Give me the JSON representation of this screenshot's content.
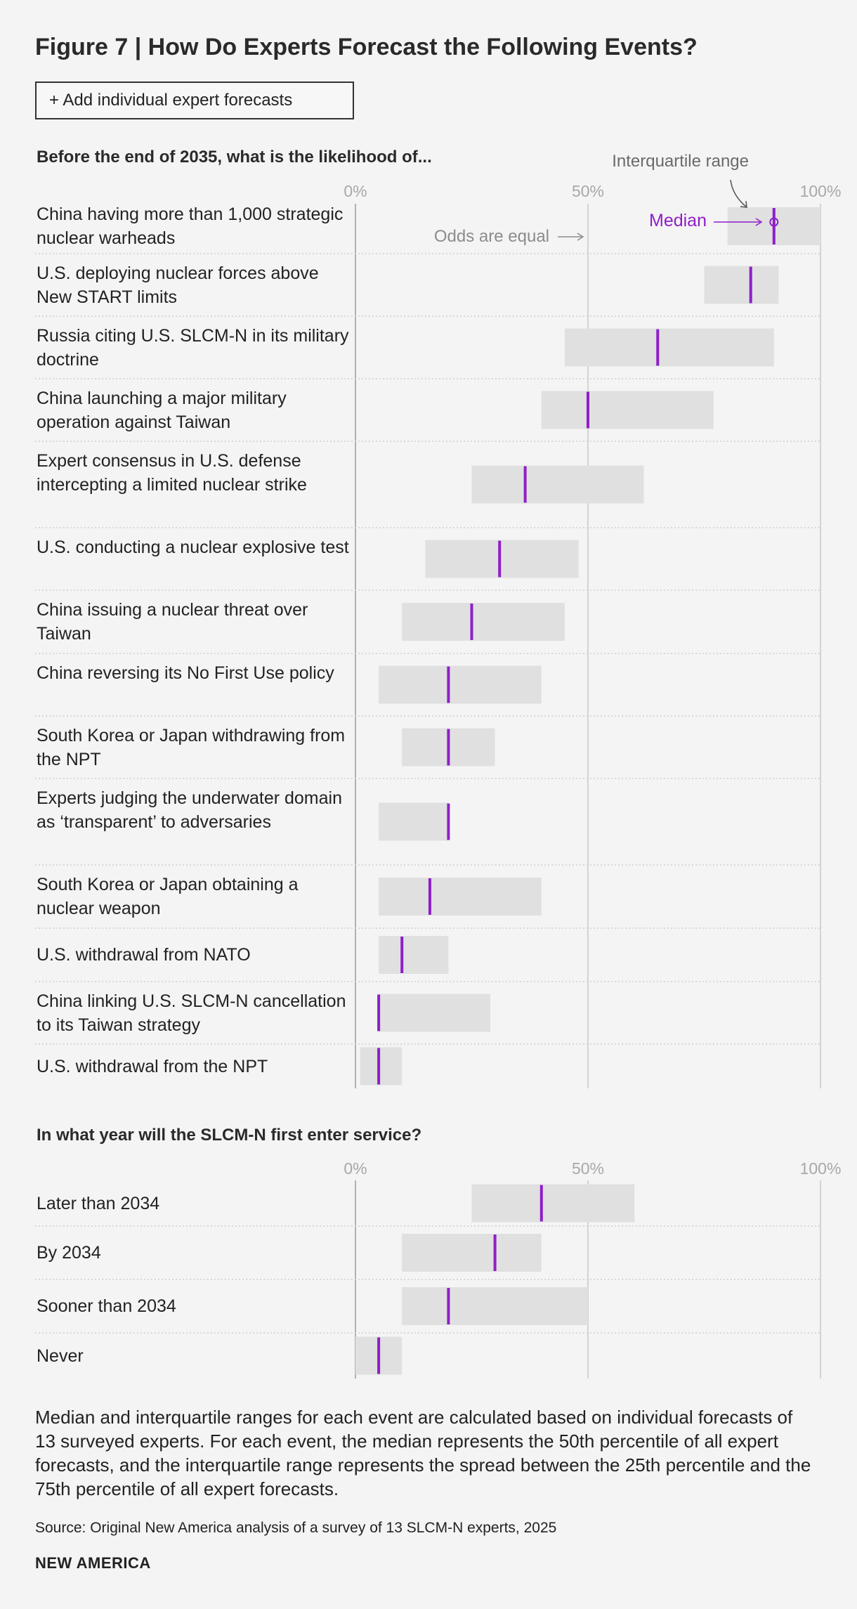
{
  "title": "Figure 7 | How Do Experts Forecast the Following Events?",
  "add_button_label": "+ Add individual expert forecasts",
  "colors": {
    "median": "#8e1fc7",
    "iqr": "#e0e0e0",
    "axis": "#a0a0a0"
  },
  "chart_data": [
    {
      "type": "range",
      "question": "Before the end of 2035, what is the likelihood of...",
      "ticks": [
        "0%",
        "50%",
        "100%"
      ],
      "xlim": [
        0,
        100
      ],
      "annotations": {
        "interquartile_label": "Interquartile range",
        "median_label": "Median",
        "odds_label": "Odds are equal"
      },
      "rows": [
        {
          "label": "China having more than 1,000 strategic nuclear warheads",
          "q1": 80,
          "median": 90,
          "q3": 100
        },
        {
          "label": "U.S. deploying nuclear forces above New START limits",
          "q1": 75,
          "median": 85,
          "q3": 91
        },
        {
          "label": "Russia citing U.S. SLCM-N in its military doctrine",
          "q1": 45,
          "median": 65,
          "q3": 90
        },
        {
          "label": "China launching a major military operation against Taiwan",
          "q1": 40,
          "median": 50,
          "q3": 77
        },
        {
          "label": "Expert consensus in U.S. defense intercepting a limited nuclear strike",
          "q1": 25,
          "median": 36.5,
          "q3": 62
        },
        {
          "label": "U.S. conducting a nuclear explosive test",
          "q1": 15,
          "median": 31,
          "q3": 48
        },
        {
          "label": "China issuing a nuclear threat over Taiwan",
          "q1": 10,
          "median": 25,
          "q3": 45
        },
        {
          "label": "China reversing its No First Use policy",
          "q1": 5,
          "median": 20,
          "q3": 40
        },
        {
          "label": "South Korea or Japan withdrawing from the NPT",
          "q1": 10,
          "median": 20,
          "q3": 30
        },
        {
          "label": "Experts judging the underwater domain as ‘transparent’ to adversaries",
          "q1": 5,
          "median": 20,
          "q3": 20
        },
        {
          "label": "South Korea or Japan obtaining a nuclear weapon",
          "q1": 5,
          "median": 16,
          "q3": 40
        },
        {
          "label": "U.S. withdrawal from NATO",
          "q1": 5,
          "median": 10,
          "q3": 20
        },
        {
          "label": "China linking U.S. SLCM-N cancellation to its Taiwan strategy",
          "q1": 5,
          "median": 5,
          "q3": 29
        },
        {
          "label": "U.S. withdrawal from the NPT",
          "q1": 1,
          "median": 5,
          "q3": 10
        }
      ]
    },
    {
      "type": "range",
      "question": "In what year will the SLCM-N first enter service?",
      "ticks": [
        "0%",
        "50%",
        "100%"
      ],
      "xlim": [
        0,
        100
      ],
      "rows": [
        {
          "label": "Later than 2034",
          "q1": 25,
          "median": 40,
          "q3": 60
        },
        {
          "label": "By 2034",
          "q1": 10,
          "median": 30,
          "q3": 40
        },
        {
          "label": "Sooner than 2034",
          "q1": 10,
          "median": 20,
          "q3": 50
        },
        {
          "label": "Never",
          "q1": 0,
          "median": 5,
          "q3": 10
        }
      ]
    }
  ],
  "footnote": "Median and interquartile ranges for each event are calculated based on individual forecasts of 13 surveyed experts. For each event, the median represents the 50th percentile of all expert forecasts, and the interquartile range represents the spread between the 25th percentile and the 75th percentile of all expert forecasts.",
  "source": "Source: Original New America analysis of a survey of 13 SLCM-N experts, 2025",
  "brand": "NEW AMERICA"
}
